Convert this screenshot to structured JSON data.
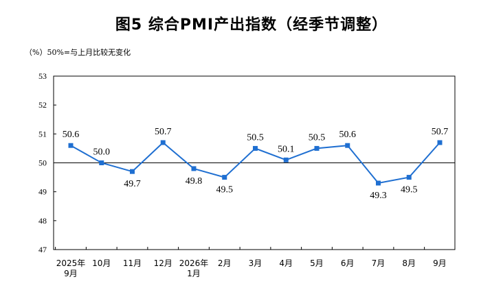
{
  "chart_data": {
    "type": "line",
    "title": "图5  综合PMI产出指数（经季节调整）",
    "unit_note": "（%）50%=与上月比较无变化",
    "categories": [
      "2025年\n9月",
      "10月",
      "11月",
      "12月",
      "2026年\n1月",
      "2月",
      "3月",
      "4月",
      "5月",
      "6月",
      "7月",
      "8月",
      "9月"
    ],
    "values": [
      50.6,
      50.0,
      49.7,
      50.7,
      49.8,
      49.5,
      50.5,
      50.1,
      50.5,
      50.6,
      49.3,
      49.5,
      50.7
    ],
    "data_labels": [
      "50.6",
      "50.0",
      "49.7",
      "50.7",
      "49.8",
      "49.5",
      "50.5",
      "50.1",
      "50.5",
      "50.6",
      "49.3",
      "49.5",
      "50.7"
    ],
    "label_position": [
      "above",
      "above",
      "below",
      "above",
      "below",
      "below",
      "above",
      "above",
      "above",
      "above",
      "below",
      "below",
      "above"
    ],
    "ylim": [
      47,
      53
    ],
    "yticks": [
      47,
      48,
      49,
      50,
      51,
      52,
      53
    ],
    "reference_line": 50,
    "line_color": "#1f6fd1",
    "marker": "square",
    "grid": false,
    "legend": false
  }
}
